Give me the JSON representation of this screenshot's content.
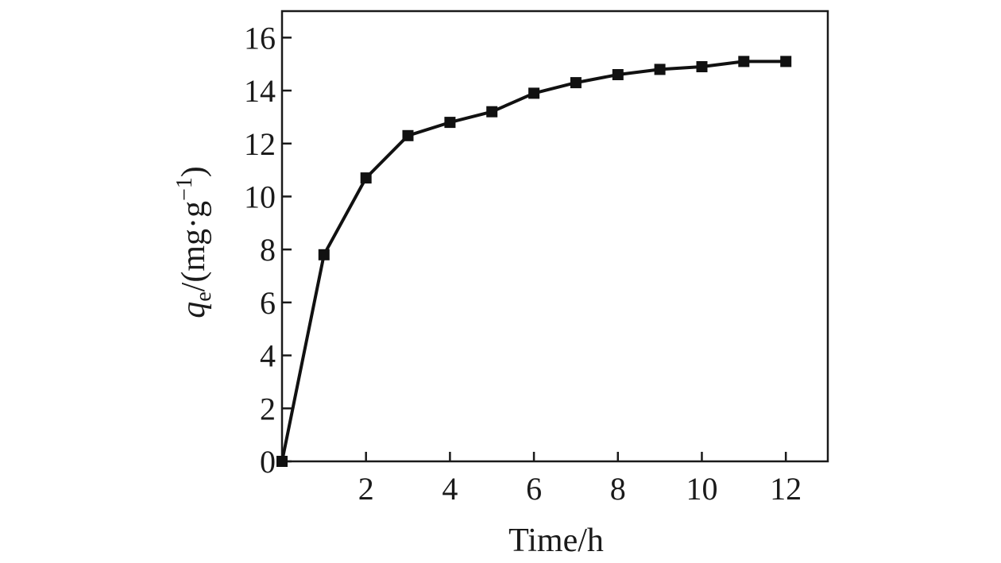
{
  "chart_data": {
    "type": "line",
    "xlabel": "Time/h",
    "ylabel": {
      "symbol": "q",
      "subscript": "e",
      "unit_prefix": "/(mg·g",
      "unit_superscript": "−1",
      "unit_suffix": ")"
    },
    "xlim": [
      0,
      13
    ],
    "ylim": [
      0,
      17
    ],
    "xticks": [
      2,
      4,
      6,
      8,
      10,
      12
    ],
    "yticks": [
      0,
      2,
      4,
      6,
      8,
      10,
      12,
      14,
      16
    ],
    "grid": false,
    "legend": "none",
    "series": [
      {
        "marker": "square",
        "color": "#111111",
        "x": [
          0,
          1,
          2,
          3,
          4,
          5,
          6,
          7,
          8,
          9,
          10,
          11,
          12
        ],
        "y": [
          0,
          7.8,
          10.7,
          12.3,
          12.8,
          13.2,
          13.9,
          14.3,
          14.6,
          14.8,
          14.9,
          15.1,
          15.1
        ]
      }
    ]
  }
}
